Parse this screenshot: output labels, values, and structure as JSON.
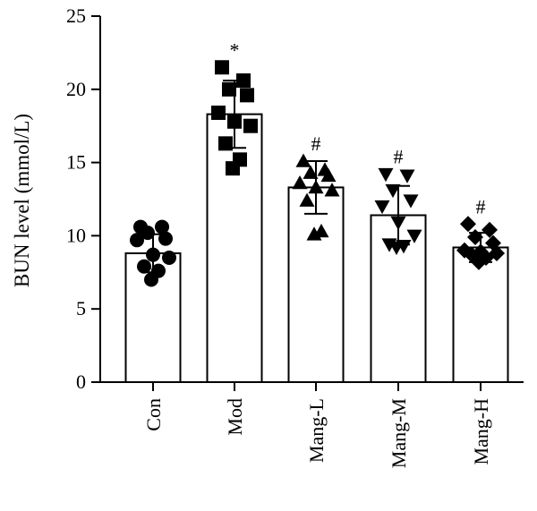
{
  "chart_data": {
    "type": "bar",
    "ylabel": "BUN level (mmol/L)",
    "ylim": [
      0,
      25
    ],
    "yticks": [
      0,
      5,
      10,
      15,
      20,
      25
    ],
    "grid": false,
    "categories": [
      "Con",
      "Mod",
      "Mang-L",
      "Mang-M",
      "Mang-H"
    ],
    "values": [
      8.8,
      18.3,
      13.3,
      11.4,
      9.2
    ],
    "error": [
      1.3,
      2.3,
      1.8,
      2.0,
      1.0
    ],
    "annotations": [
      "",
      "*",
      "#",
      "#",
      "#"
    ],
    "marker_shapes": [
      "circle",
      "square",
      "triangle-up",
      "triangle-down",
      "diamond"
    ],
    "points": [
      [
        10.6,
        10.6,
        10.2,
        9.8,
        9.7,
        8.7,
        8.5,
        7.9,
        7.6,
        7.0
      ],
      [
        21.5,
        20.6,
        20.0,
        19.6,
        18.4,
        17.8,
        17.5,
        16.3,
        15.2,
        14.6
      ],
      [
        15.1,
        14.5,
        14.3,
        14.1,
        13.6,
        13.3,
        13.1,
        12.4,
        10.3,
        10.1
      ],
      [
        14.2,
        14.1,
        13.1,
        12.4,
        12.0,
        10.9,
        10.0,
        9.4,
        9.3,
        9.2
      ],
      [
        10.8,
        10.4,
        9.9,
        9.5,
        9.0,
        8.9,
        8.8,
        8.7,
        8.5,
        8.2
      ]
    ]
  }
}
